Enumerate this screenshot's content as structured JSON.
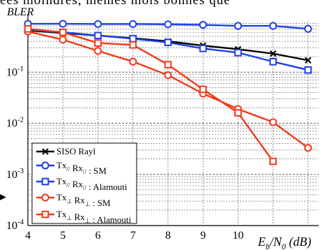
{
  "top_fragment": "ées moindres, mêmes mois bonnes que",
  "side_arrow": "▶",
  "chart_data": {
    "type": "line",
    "title": "",
    "ylabel": "BLER",
    "xlabel_main": "E",
    "xlabel_sub": "b",
    "xlabel_mid": "/N",
    "xlabel_sub2": "0",
    "xlabel_unit": " (dB)",
    "xlim": [
      4,
      12.3
    ],
    "ylim": [
      0.0001,
      1
    ],
    "yscale": "log",
    "grid": true,
    "legend_position": "bottom-left",
    "xticks": [
      4,
      5,
      6,
      7,
      8,
      9,
      10
    ],
    "yticks": [
      {
        "value": 0.1,
        "base": "10",
        "exp": "-1"
      },
      {
        "value": 0.01,
        "base": "10",
        "exp": "-2"
      },
      {
        "value": 0.001,
        "base": "10",
        "exp": "-3"
      },
      {
        "value": 0.0001,
        "base": "10",
        "exp": "-4"
      }
    ],
    "series": [
      {
        "name": "SISO Rayl",
        "legend_parts": [
          {
            "t": "SISO Rayl"
          }
        ],
        "color": "#000000",
        "marker": "x",
        "x": [
          4,
          5,
          6,
          7,
          8,
          9,
          10,
          11,
          12
        ],
        "y": [
          0.65,
          0.58,
          0.52,
          0.46,
          0.4,
          0.33,
          0.28,
          0.23,
          0.17
        ]
      },
      {
        "name": "Tx// Rx// : SM",
        "legend_parts": [
          {
            "t": "Tx"
          },
          {
            "t": "//",
            "sub": true
          },
          {
            "t": " Rx"
          },
          {
            "t": "//",
            "sub": true
          },
          {
            "t": " : SM"
          }
        ],
        "color": "#1f3fe6",
        "marker": "circle",
        "x": [
          4,
          5,
          6,
          7,
          8,
          9,
          10,
          11,
          12
        ],
        "y": [
          0.88,
          0.88,
          0.87,
          0.87,
          0.86,
          0.84,
          0.8,
          0.8,
          0.7
        ]
      },
      {
        "name": "Tx// Rx// : Alamouti",
        "legend_parts": [
          {
            "t": "Tx"
          },
          {
            "t": "//",
            "sub": true
          },
          {
            "t": " Rx"
          },
          {
            "t": "//",
            "sub": true
          },
          {
            "t": " : Alamouti"
          }
        ],
        "color": "#1f3fe6",
        "marker": "square",
        "x": [
          4,
          5,
          6,
          7,
          8,
          9,
          10,
          11,
          12
        ],
        "y": [
          0.67,
          0.6,
          0.52,
          0.45,
          0.38,
          0.29,
          0.24,
          0.16,
          0.11
        ]
      },
      {
        "name": "Tx⊥ Rx⊥ : SM",
        "legend_parts": [
          {
            "t": "Tx"
          },
          {
            "t": "⊥",
            "sub": true
          },
          {
            "t": " Rx"
          },
          {
            "t": "⊥",
            "sub": true
          },
          {
            "t": " : SM"
          }
        ],
        "color": "#f03a1a",
        "marker": "circle",
        "x": [
          4,
          5,
          6,
          7,
          8,
          9,
          10,
          11,
          12
        ],
        "y": [
          0.62,
          0.43,
          0.26,
          0.16,
          0.087,
          0.038,
          0.019,
          0.0105,
          0.0033
        ]
      },
      {
        "name": "Tx⊥ Rx⊥ : Alamouti",
        "legend_parts": [
          {
            "t": "Tx"
          },
          {
            "t": "⊥",
            "sub": true
          },
          {
            "t": " Rx"
          },
          {
            "t": "⊥",
            "sub": true
          },
          {
            "t": " : Alamouti"
          }
        ],
        "color": "#f03a1a",
        "marker": "square",
        "x": [
          4,
          5,
          6,
          7,
          8,
          9,
          10,
          11
        ],
        "y": [
          0.7,
          0.6,
          0.37,
          0.34,
          0.14,
          0.046,
          0.016,
          0.0018
        ]
      }
    ]
  }
}
